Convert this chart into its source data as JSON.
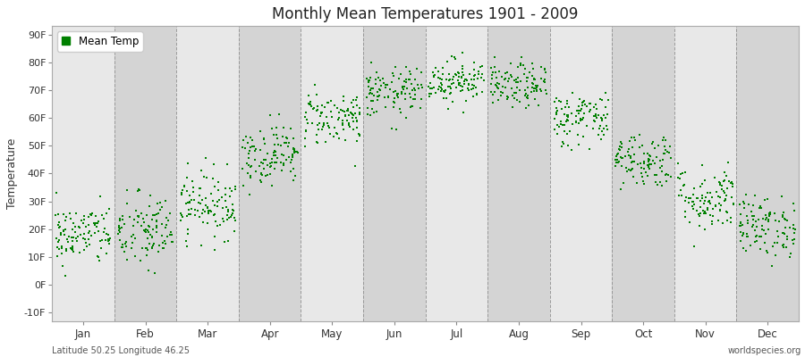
{
  "title": "Monthly Mean Temperatures 1901 - 2009",
  "ylabel": "Temperature",
  "xlabel": "",
  "legend_label": "Mean Temp",
  "dot_color": "#008000",
  "bg_color": "#ffffff",
  "plot_bg_color": "#e0e0e0",
  "stripe_light": "#e8e8e8",
  "stripe_dark": "#d4d4d4",
  "yticks": [
    -10,
    0,
    10,
    20,
    30,
    40,
    50,
    60,
    70,
    80,
    90
  ],
  "ytick_labels": [
    "-10F",
    "0F",
    "10F",
    "20F",
    "30F",
    "40F",
    "50F",
    "60F",
    "70F",
    "80F",
    "90F"
  ],
  "ylim": [
    -13,
    93
  ],
  "months": [
    "Jan",
    "Feb",
    "Mar",
    "Apr",
    "May",
    "Jun",
    "Jul",
    "Aug",
    "Sep",
    "Oct",
    "Nov",
    "Dec"
  ],
  "footer_left": "Latitude 50.25 Longitude 46.25",
  "footer_right": "worldspecies.org",
  "n_years": 109,
  "monthly_mean_temps_f": [
    18.0,
    19.0,
    29.0,
    47.0,
    60.0,
    69.0,
    73.5,
    71.5,
    60.0,
    45.0,
    31.0,
    21.0
  ],
  "monthly_std_temps_f": [
    5.5,
    7.0,
    6.0,
    5.5,
    5.0,
    4.5,
    4.0,
    4.0,
    5.0,
    5.0,
    6.0,
    5.5
  ]
}
